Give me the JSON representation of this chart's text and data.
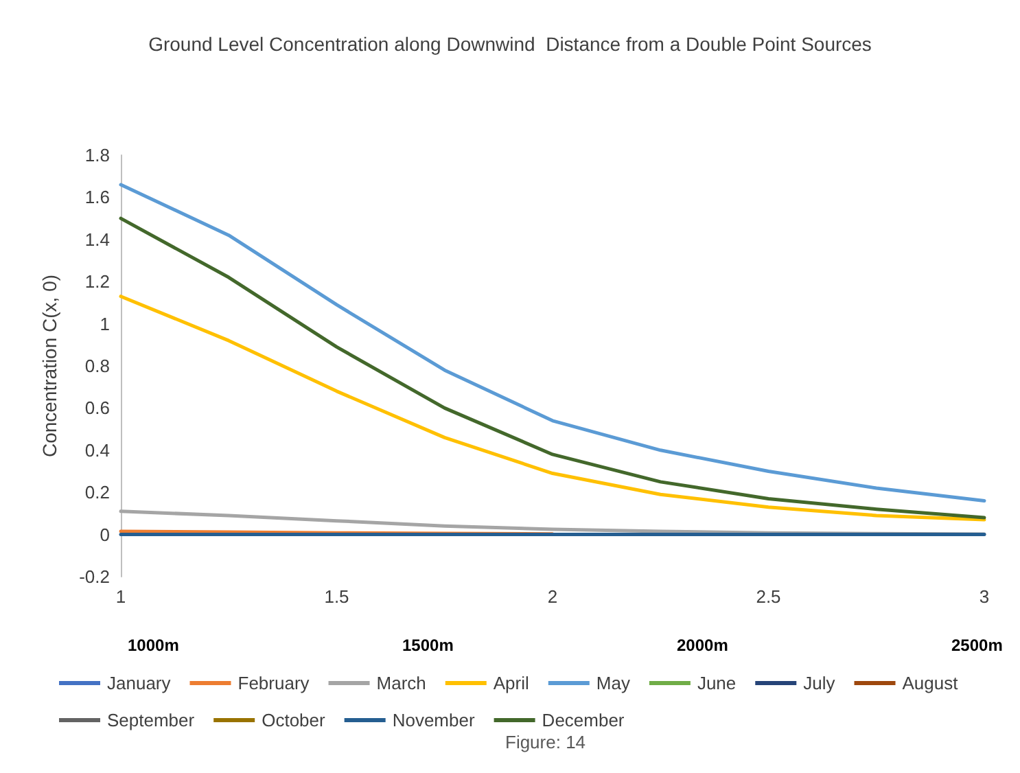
{
  "chart_data": {
    "type": "line",
    "title": "Ground Level Concentration along Downwind  Distance from a Double Point Sources",
    "ylabel": "Concentration C(x, 0)",
    "x": [
      1,
      1.25,
      1.5,
      1.75,
      2,
      2.25,
      2.5,
      2.75,
      3
    ],
    "series": [
      {
        "name": "January",
        "color": "#4472c4",
        "values": [
          null,
          null,
          null,
          null,
          null,
          null,
          null,
          null,
          null
        ]
      },
      {
        "name": "February",
        "color": "#ed7d31",
        "values": [
          0.015,
          0.012,
          0.008,
          0.005,
          0.003,
          null,
          null,
          null,
          null
        ]
      },
      {
        "name": "March",
        "color": "#a5a5a5",
        "values": [
          0.11,
          0.09,
          0.065,
          0.04,
          0.025,
          0.015,
          0.008,
          0.004,
          0.002
        ]
      },
      {
        "name": "April",
        "color": "#ffc000",
        "values": [
          1.13,
          0.92,
          0.68,
          0.46,
          0.29,
          0.19,
          0.13,
          0.09,
          0.07
        ]
      },
      {
        "name": "May",
        "color": "#5b9bd5",
        "values": [
          1.66,
          1.42,
          1.09,
          0.78,
          0.54,
          0.4,
          0.3,
          0.22,
          0.16
        ]
      },
      {
        "name": "June",
        "color": "#70ad47",
        "values": [
          null,
          null,
          null,
          null,
          null,
          null,
          null,
          null,
          null
        ]
      },
      {
        "name": "July",
        "color": "#264478",
        "values": [
          null,
          null,
          null,
          null,
          null,
          null,
          null,
          null,
          null
        ]
      },
      {
        "name": "August",
        "color": "#9e480e",
        "values": [
          null,
          null,
          null,
          null,
          null,
          null,
          null,
          null,
          null
        ]
      },
      {
        "name": "September",
        "color": "#636363",
        "values": [
          null,
          null,
          null,
          null,
          null,
          null,
          null,
          null,
          null
        ]
      },
      {
        "name": "October",
        "color": "#997300",
        "values": [
          null,
          null,
          null,
          null,
          null,
          null,
          null,
          null,
          null
        ]
      },
      {
        "name": "November",
        "color": "#255e91",
        "values": [
          0,
          0,
          0,
          0,
          0,
          0,
          0,
          0,
          0
        ]
      },
      {
        "name": "December",
        "color": "#43682b",
        "values": [
          1.5,
          1.22,
          0.89,
          0.6,
          0.38,
          0.25,
          0.17,
          0.12,
          0.08
        ]
      }
    ],
    "xlim": [
      1,
      3
    ],
    "xticks": [
      1,
      1.5,
      2,
      2.5,
      3
    ],
    "ylim": [
      -0.2,
      1.8
    ],
    "yticks": [
      -0.2,
      0,
      0.2,
      0.4,
      0.6,
      0.8,
      1,
      1.2,
      1.4,
      1.6,
      1.8
    ],
    "grid": false,
    "legend": "bottom",
    "marker": "none",
    "line_style": "solid",
    "annotations": [
      "1000m",
      "1500m",
      "2000m",
      "2500m",
      "Figure: 14"
    ]
  }
}
